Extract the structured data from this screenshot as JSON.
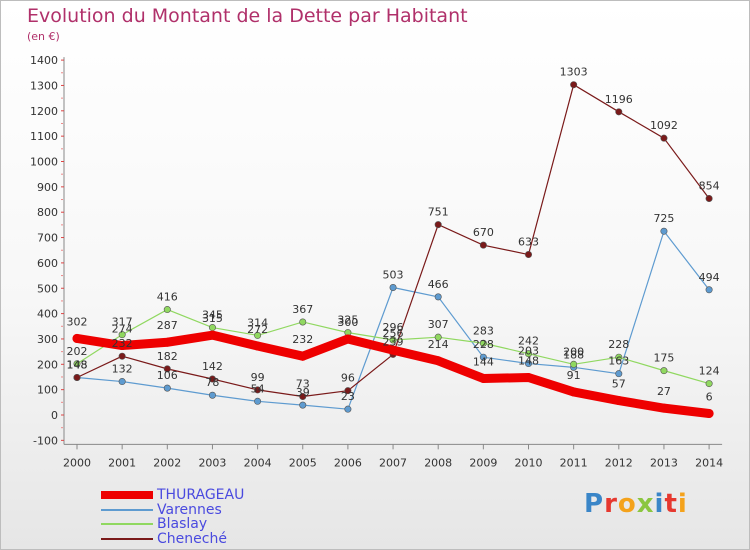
{
  "title": "Evolution du Montant de la Dette par Habitant",
  "subtitle": "(en €)",
  "logo_text": "Proxiti",
  "chart_data": {
    "type": "line",
    "title": "Evolution du Montant de la Dette par Habitant",
    "ylabel": "(en €)",
    "xlabel": "",
    "x": [
      "2000",
      "2001",
      "2002",
      "2003",
      "2004",
      "2005",
      "2006",
      "2007",
      "2008",
      "2009",
      "2010",
      "2011",
      "2012",
      "2013",
      "2014"
    ],
    "ylim": [
      -100,
      1400
    ],
    "yticks": [
      -100,
      0,
      100,
      200,
      300,
      400,
      500,
      600,
      700,
      800,
      900,
      1000,
      1100,
      1200,
      1300,
      1400
    ],
    "grid": false,
    "legend_position": "bottom-left",
    "series": [
      {
        "name": "THURAGEAU",
        "color": "#ee0000",
        "values": [
          302,
          274,
          287,
          315,
          272,
          232,
          300,
          256,
          214,
          144,
          148,
          91,
          57,
          27,
          6
        ]
      },
      {
        "name": "Varennes",
        "color": "#5e9bd0",
        "values": [
          148,
          132,
          106,
          78,
          54,
          39,
          23,
          503,
          466,
          228,
          203,
          188,
          163,
          725,
          494
        ]
      },
      {
        "name": "Blaslay",
        "color": "#90d860",
        "values": [
          202,
          317,
          416,
          345,
          314,
          367,
          325,
          296,
          307,
          283,
          242,
          200,
          228,
          175,
          124
        ]
      },
      {
        "name": "Cheneché",
        "color": "#7a1a1a",
        "values": [
          148,
          232,
          182,
          142,
          99,
          73,
          96,
          239,
          751,
          670,
          633,
          1303,
          1196,
          1092,
          854
        ]
      }
    ]
  }
}
